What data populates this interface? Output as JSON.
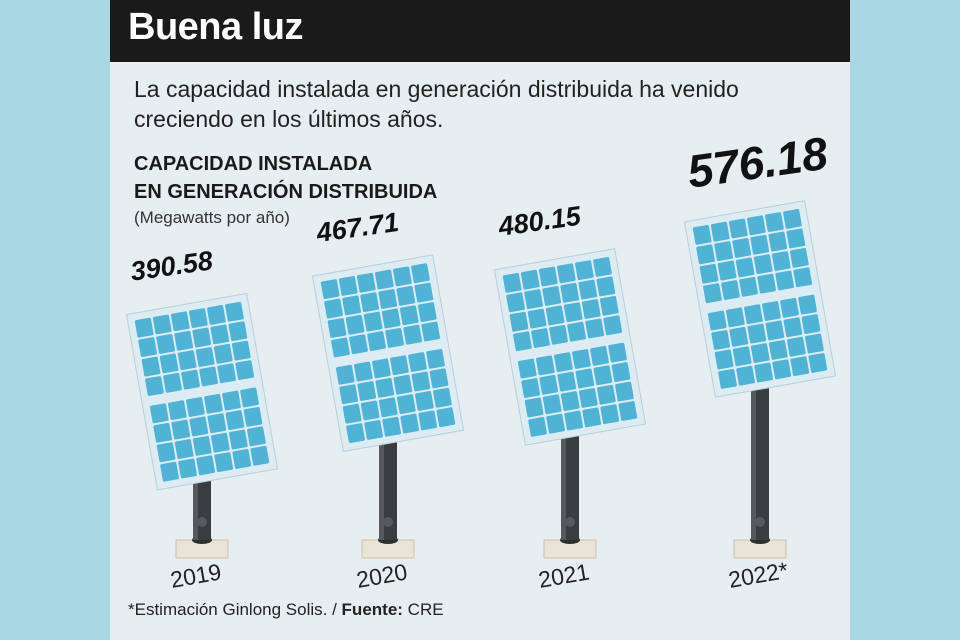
{
  "header": {
    "title": "Buena luz"
  },
  "intro": "La capacidad instalada en generación distribuida ha venido creciendo en los últimos años.",
  "chart_title_lines": [
    "CAPACIDAD INSTALADA",
    "EN GENERACIÓN DISTRIBUIDA"
  ],
  "unit": "(Megawatts por año)",
  "footnote": {
    "note": "*Estimación Ginlong Solis. / ",
    "source_label": "Fuente:",
    "source": " CRE"
  },
  "colors": {
    "background": "#a9d8e4",
    "card": "#e6eef1",
    "header": "#1a1a1a",
    "panel_cell": "#4fb3d6",
    "panel_frame": "#dcecf2",
    "pole": "#3a3d40",
    "base": "#e9e4d6"
  },
  "chart_data": {
    "type": "bar",
    "categories": [
      "2019",
      "2020",
      "2021",
      "2022*"
    ],
    "values": [
      390.58,
      467.71,
      480.15,
      576.18
    ],
    "value_labels": [
      "390.58",
      "467.71",
      "480.15",
      "576.18"
    ],
    "title": "CAPACIDAD INSTALADA EN GENERACIÓN DISTRIBUIDA",
    "ylabel": "(Megawatts por año)",
    "grid": false,
    "legend": "none"
  }
}
